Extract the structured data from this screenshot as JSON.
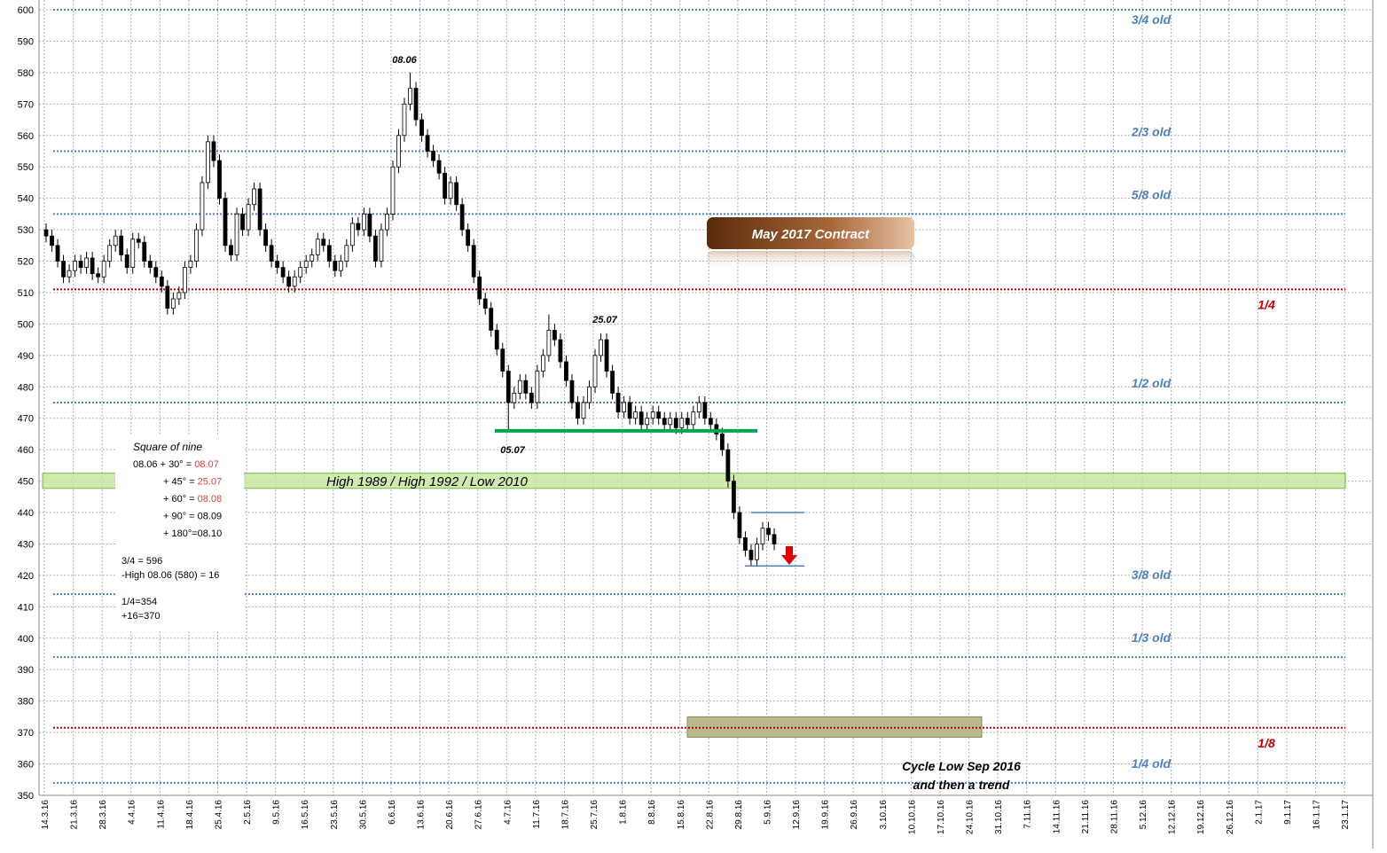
{
  "chart_data": {
    "type": "candlestick",
    "contract": "May 2017 Contract",
    "ylim": [
      350,
      600
    ],
    "yticks": [
      350,
      360,
      370,
      380,
      390,
      400,
      410,
      420,
      430,
      440,
      450,
      460,
      470,
      480,
      490,
      500,
      510,
      520,
      530,
      540,
      550,
      560,
      570,
      580,
      590,
      600
    ],
    "grid": true,
    "categories": [
      "14.3.16",
      "21.3.16",
      "28.3.16",
      "4.4.16",
      "11.4.16",
      "18.4.16",
      "25.4.16",
      "2.5.16",
      "9.5.16",
      "16.5.16",
      "23.5.16",
      "30.5.16",
      "6.6.16",
      "13.6.16",
      "20.6.16",
      "27.6.16",
      "4.7.16",
      "11.7.16",
      "18.7.16",
      "25.7.16",
      "1.8.16",
      "8.8.16",
      "15.8.16",
      "22.8.16",
      "29.8.16",
      "5.9.16",
      "12.9.16",
      "19.9.16",
      "26.9.16",
      "3.10.16",
      "10.10.16",
      "17.10.16",
      "24.10.16",
      "31.10.16",
      "7.11.16",
      "14.11.16",
      "21.11.16",
      "28.11.16",
      "5.12.16",
      "12.12.16",
      "19.12.16",
      "26.12.16",
      "2.1.17",
      "9.1.17",
      "16.1.17",
      "23.1.17"
    ],
    "ohlc": [
      [
        530,
        532,
        526,
        528
      ],
      [
        528,
        530,
        523,
        525
      ],
      [
        525,
        527,
        518,
        520
      ],
      [
        520,
        522,
        513,
        515
      ],
      [
        515,
        519,
        513,
        517
      ],
      [
        517,
        522,
        515,
        520
      ],
      [
        520,
        522,
        516,
        518
      ],
      [
        518,
        523,
        516,
        521
      ],
      [
        521,
        523,
        514,
        516
      ],
      [
        516,
        518,
        513,
        515
      ],
      [
        515,
        522,
        513,
        520
      ],
      [
        520,
        527,
        518,
        525
      ],
      [
        525,
        530,
        523,
        528
      ],
      [
        528,
        530,
        520,
        522
      ],
      [
        522,
        524,
        516,
        518
      ],
      [
        518,
        529,
        516,
        527
      ],
      [
        527,
        529,
        524,
        526
      ],
      [
        526,
        528,
        518,
        520
      ],
      [
        520,
        522,
        516,
        518
      ],
      [
        518,
        520,
        513,
        515
      ],
      [
        515,
        517,
        510,
        512
      ],
      [
        512,
        514,
        503,
        505
      ],
      [
        505,
        510,
        503,
        508
      ],
      [
        508,
        512,
        506,
        510
      ],
      [
        510,
        520,
        508,
        518
      ],
      [
        518,
        522,
        516,
        520
      ],
      [
        520,
        532,
        518,
        530
      ],
      [
        530,
        547,
        528,
        545
      ],
      [
        545,
        560,
        543,
        558
      ],
      [
        558,
        560,
        550,
        552
      ],
      [
        552,
        554,
        538,
        540
      ],
      [
        540,
        542,
        523,
        525
      ],
      [
        525,
        527,
        520,
        522
      ],
      [
        522,
        537,
        520,
        535
      ],
      [
        535,
        537,
        528,
        530
      ],
      [
        530,
        540,
        528,
        538
      ],
      [
        538,
        545,
        536,
        543
      ],
      [
        543,
        545,
        528,
        530
      ],
      [
        530,
        532,
        523,
        525
      ],
      [
        525,
        527,
        518,
        520
      ],
      [
        520,
        522,
        516,
        518
      ],
      [
        518,
        520,
        513,
        515
      ],
      [
        515,
        517,
        510,
        512
      ],
      [
        512,
        517,
        510,
        515
      ],
      [
        515,
        520,
        513,
        518
      ],
      [
        518,
        522,
        516,
        520
      ],
      [
        520,
        524,
        518,
        522
      ],
      [
        522,
        529,
        520,
        527
      ],
      [
        527,
        529,
        523,
        525
      ],
      [
        525,
        527,
        518,
        520
      ],
      [
        520,
        522,
        515,
        517
      ],
      [
        517,
        522,
        515,
        520
      ],
      [
        520,
        527,
        518,
        525
      ],
      [
        525,
        534,
        523,
        532
      ],
      [
        532,
        534,
        528,
        530
      ],
      [
        530,
        537,
        528,
        535
      ],
      [
        535,
        537,
        526,
        528
      ],
      [
        528,
        530,
        518,
        520
      ],
      [
        520,
        532,
        518,
        530
      ],
      [
        530,
        537,
        528,
        535
      ],
      [
        535,
        552,
        533,
        550
      ],
      [
        550,
        562,
        548,
        560
      ],
      [
        560,
        572,
        558,
        570
      ],
      [
        570,
        580,
        568,
        575
      ],
      [
        575,
        577,
        563,
        565
      ],
      [
        565,
        567,
        558,
        560
      ],
      [
        560,
        562,
        553,
        555
      ],
      [
        555,
        557,
        550,
        552
      ],
      [
        552,
        554,
        546,
        548
      ],
      [
        548,
        550,
        538,
        540
      ],
      [
        540,
        547,
        538,
        545
      ],
      [
        545,
        547,
        536,
        538
      ],
      [
        538,
        540,
        528,
        530
      ],
      [
        530,
        532,
        523,
        525
      ],
      [
        525,
        527,
        513,
        515
      ],
      [
        515,
        517,
        506,
        508
      ],
      [
        508,
        510,
        503,
        505
      ],
      [
        505,
        507,
        496,
        498
      ],
      [
        498,
        500,
        490,
        492
      ],
      [
        492,
        494,
        483,
        485
      ],
      [
        485,
        487,
        466,
        475
      ],
      [
        475,
        480,
        473,
        478
      ],
      [
        478,
        484,
        476,
        482
      ],
      [
        482,
        484,
        476,
        478
      ],
      [
        478,
        480,
        473,
        475
      ],
      [
        475,
        487,
        473,
        485
      ],
      [
        485,
        492,
        483,
        490
      ],
      [
        490,
        503,
        488,
        498
      ],
      [
        498,
        500,
        493,
        495
      ],
      [
        495,
        497,
        486,
        488
      ],
      [
        488,
        490,
        480,
        482
      ],
      [
        482,
        484,
        473,
        475
      ],
      [
        475,
        477,
        468,
        470
      ],
      [
        470,
        477,
        468,
        475
      ],
      [
        475,
        482,
        473,
        480
      ],
      [
        480,
        492,
        478,
        490
      ],
      [
        490,
        497,
        488,
        495
      ],
      [
        495,
        497,
        483,
        485
      ],
      [
        485,
        487,
        476,
        478
      ],
      [
        478,
        480,
        470,
        472
      ],
      [
        472,
        477,
        470,
        475
      ],
      [
        475,
        477,
        468,
        470
      ],
      [
        470,
        474,
        468,
        472
      ],
      [
        472,
        474,
        466,
        468
      ],
      [
        468,
        472,
        466,
        470
      ],
      [
        470,
        474,
        468,
        472
      ],
      [
        472,
        474,
        468,
        470
      ],
      [
        470,
        472,
        466,
        468
      ],
      [
        468,
        472,
        466,
        470
      ],
      [
        470,
        472,
        465,
        467
      ],
      [
        467,
        472,
        465,
        470
      ],
      [
        470,
        472,
        466,
        468
      ],
      [
        468,
        474,
        466,
        472
      ],
      [
        472,
        477,
        470,
        475
      ],
      [
        475,
        477,
        468,
        470
      ],
      [
        470,
        472,
        466,
        468
      ],
      [
        468,
        470,
        463,
        465
      ],
      [
        465,
        467,
        458,
        460
      ],
      [
        460,
        462,
        448,
        450
      ],
      [
        450,
        452,
        438,
        440
      ],
      [
        440,
        442,
        430,
        432
      ],
      [
        432,
        434,
        426,
        428
      ],
      [
        428,
        430,
        423,
        425
      ],
      [
        425,
        432,
        423,
        430
      ],
      [
        430,
        437,
        428,
        435
      ],
      [
        435,
        437,
        431,
        433
      ],
      [
        433,
        435,
        428,
        430
      ]
    ],
    "levels": [
      {
        "value": 600,
        "label": "3/4 old",
        "color": "#4f81bd"
      },
      {
        "value": 555,
        "label": "2/3 old",
        "color": "#4f81bd"
      },
      {
        "value": 535,
        "label": "5/8 old",
        "color": "#4f81bd"
      },
      {
        "value": 511,
        "label": "1/4",
        "color": "#c00000"
      },
      {
        "value": 475,
        "label": "1/2 old",
        "color": "#4f81bd"
      },
      {
        "value": 414,
        "label": "3/8 old",
        "color": "#4f81bd"
      },
      {
        "value": 394,
        "label": "1/3 old",
        "color": "#4f81bd"
      },
      {
        "value": 371.5,
        "label": "1/8",
        "color": "#c00000"
      },
      {
        "value": 354,
        "label": "1/4 old",
        "color": "#4f81bd"
      }
    ],
    "zones": [
      {
        "label": "High 1989 / High 1992 / Low 2010",
        "range": [
          447.7,
          452.5
        ],
        "color": "#c6e59c"
      },
      {
        "range": [
          368.5,
          375
        ],
        "color": "#b9b98c"
      }
    ],
    "support": {
      "value": 466,
      "color": "#00a550"
    },
    "range_lines": [
      440,
      423
    ],
    "annotations": [
      "08.06",
      "25.07",
      "05.07"
    ],
    "cycle_note": [
      "Cycle Low Sep 2016",
      "and then a trend"
    ],
    "square_of_nine": {
      "title": "Square of nine",
      "lines": [
        {
          "text": "08.06 + 30° = ",
          "date": "08.07",
          "color": "#e04040"
        },
        {
          "text": "+ 45° = ",
          "date": "25.07",
          "color": "#e04040"
        },
        {
          "text": "+ 60° = ",
          "date": "08.08",
          "color": "#e04040"
        },
        {
          "text": "+ 90° = 08.09"
        },
        {
          "text": "+ 180°=08.10"
        }
      ],
      "calc": [
        "3/4 =    596",
        "-High 08.06 (580) = 16",
        "1/4=354",
        "+16=370"
      ]
    }
  }
}
